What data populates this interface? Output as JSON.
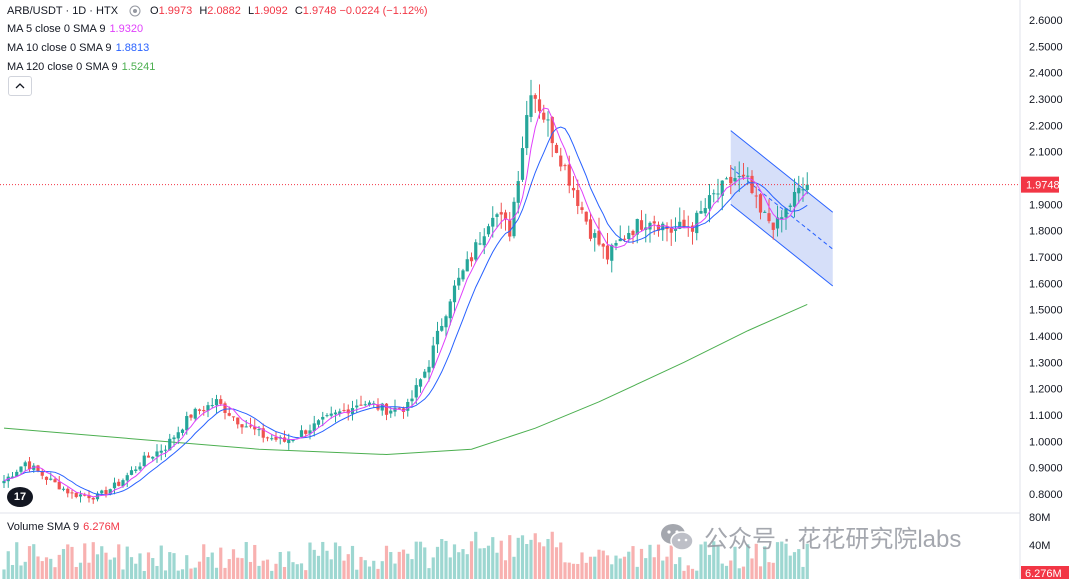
{
  "header": {
    "title": "ARB/USDT · 1D · HTX",
    "ohlc": {
      "open_label": "O",
      "open": "1.9973",
      "high_label": "H",
      "high": "2.0882",
      "low_label": "L",
      "low": "1.9092",
      "close_label": "C",
      "close": "1.9748",
      "change": "−0.0224 (−1.12%)"
    }
  },
  "indicators": {
    "ma5": {
      "label": "MA 5 close 0 SMA 9",
      "value": "1.9320",
      "color": "#e040fb"
    },
    "ma10": {
      "label": "MA 10 close 0 SMA 9",
      "value": "1.8813",
      "color": "#2962ff"
    },
    "ma120": {
      "label": "MA 120 close 0 SMA 9",
      "value": "1.5241",
      "color": "#4caf50"
    },
    "volume": {
      "label": "Volume SMA 9",
      "value": "6.276M",
      "color": "#f23645"
    }
  },
  "price_axis": {
    "ticks": [
      "2.6000",
      "2.5000",
      "2.4000",
      "2.3000",
      "2.2000",
      "2.1000",
      "1.9000",
      "1.8000",
      "1.7000",
      "1.6000",
      "1.5000",
      "1.4000",
      "1.3000",
      "1.2000",
      "1.1000",
      "1.0000",
      "0.9000",
      "0.8000"
    ],
    "current_price": "1.9748",
    "current_color": "#f23645"
  },
  "volume_axis": {
    "ticks": [
      "80M",
      "40M"
    ],
    "current": "6.276M"
  },
  "colors": {
    "up": "#26a69a",
    "down": "#ef5350",
    "channel_fill": "#c5d2f7",
    "channel_line": "#2962ff"
  },
  "watermark": {
    "text": "公众号 · 花花研究院labs",
    "icon": "wechat-icon"
  },
  "logo": {
    "text": "17",
    "icon": "tradingview-logo"
  },
  "chart_data": {
    "type": "candlestick",
    "title": "ARB/USDT · 1D · HTX",
    "ylim": [
      0.75,
      2.65
    ],
    "price_anchors": [
      [
        0,
        0.85
      ],
      [
        5,
        0.92
      ],
      [
        10,
        0.86
      ],
      [
        16,
        0.8
      ],
      [
        22,
        0.79
      ],
      [
        27,
        0.84
      ],
      [
        33,
        0.93
      ],
      [
        38,
        0.98
      ],
      [
        44,
        1.1
      ],
      [
        50,
        1.15
      ],
      [
        55,
        1.08
      ],
      [
        61,
        1.02
      ],
      [
        66,
        1.0
      ],
      [
        72,
        1.05
      ],
      [
        78,
        1.1
      ],
      [
        84,
        1.15
      ],
      [
        90,
        1.12
      ],
      [
        95,
        1.13
      ],
      [
        100,
        1.3
      ],
      [
        105,
        1.55
      ],
      [
        110,
        1.7
      ],
      [
        115,
        1.88
      ],
      [
        119,
        1.8
      ],
      [
        124,
        2.35
      ],
      [
        128,
        2.2
      ],
      [
        133,
        2.0
      ],
      [
        138,
        1.8
      ],
      [
        142,
        1.7
      ],
      [
        147,
        1.8
      ],
      [
        152,
        1.85
      ],
      [
        157,
        1.8
      ],
      [
        162,
        1.82
      ],
      [
        167,
        1.93
      ],
      [
        172,
        2.0
      ],
      [
        175,
        1.98
      ],
      [
        178,
        1.86
      ],
      [
        182,
        1.82
      ],
      [
        186,
        1.93
      ],
      [
        189,
        1.97
      ]
    ],
    "ma120_points": [
      [
        0,
        1.05
      ],
      [
        30,
        1.01
      ],
      [
        60,
        0.97
      ],
      [
        90,
        0.95
      ],
      [
        110,
        0.97
      ],
      [
        125,
        1.05
      ],
      [
        140,
        1.15
      ],
      [
        160,
        1.3
      ],
      [
        175,
        1.42
      ],
      [
        189,
        1.52
      ]
    ],
    "channel": {
      "upper": [
        [
          171,
          2.18
        ],
        [
          195,
          1.87
        ]
      ],
      "lower": [
        [
          171,
          1.9
        ],
        [
          195,
          1.59
        ]
      ],
      "mid": [
        [
          171,
          2.04
        ],
        [
          195,
          1.73
        ]
      ]
    },
    "last_close": 1.9748,
    "volume_sma": 6.276
  }
}
